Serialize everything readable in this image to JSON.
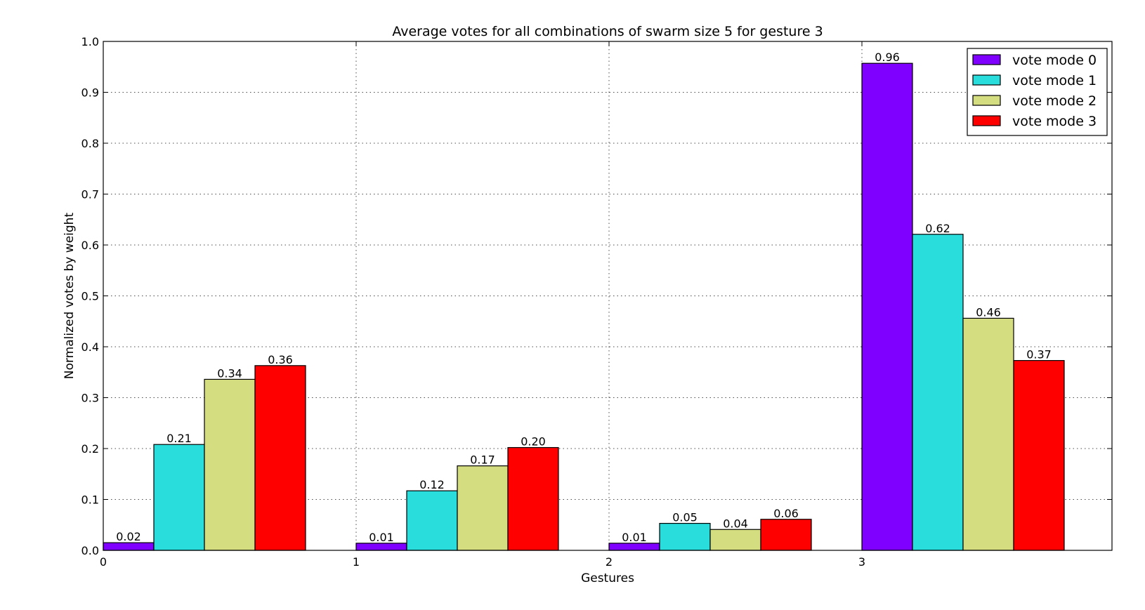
{
  "chart_data": {
    "type": "bar",
    "title": "Average votes for all combinations of swarm size 5 for gesture 3",
    "xlabel": "Gestures",
    "ylabel": "Normalized votes by weight",
    "categories": [
      "0",
      "1",
      "2",
      "3"
    ],
    "ylim": [
      0,
      1.0
    ],
    "yticks": [
      "0.0",
      "0.1",
      "0.2",
      "0.3",
      "0.4",
      "0.5",
      "0.6",
      "0.7",
      "0.8",
      "0.9",
      "1.0"
    ],
    "grid": true,
    "legend_position": "top-right",
    "series": [
      {
        "name": "vote mode 0",
        "color": "#8000ff",
        "values": [
          0.015,
          0.014,
          0.014,
          0.957
        ],
        "labels": [
          "0.02",
          "0.01",
          "0.01",
          "0.96"
        ]
      },
      {
        "name": "vote mode 1",
        "color": "#2adddd",
        "values": [
          0.208,
          0.117,
          0.053,
          0.621
        ],
        "labels": [
          "0.21",
          "0.12",
          "0.05",
          "0.62"
        ]
      },
      {
        "name": "vote mode 2",
        "color": "#d4dd80",
        "values": [
          0.336,
          0.166,
          0.041,
          0.456
        ],
        "labels": [
          "0.34",
          "0.17",
          "0.04",
          "0.46"
        ]
      },
      {
        "name": "vote mode 3",
        "color": "#ff0000",
        "values": [
          0.363,
          0.202,
          0.061,
          0.373
        ],
        "labels": [
          "0.36",
          "0.20",
          "0.06",
          "0.37"
        ]
      }
    ]
  }
}
